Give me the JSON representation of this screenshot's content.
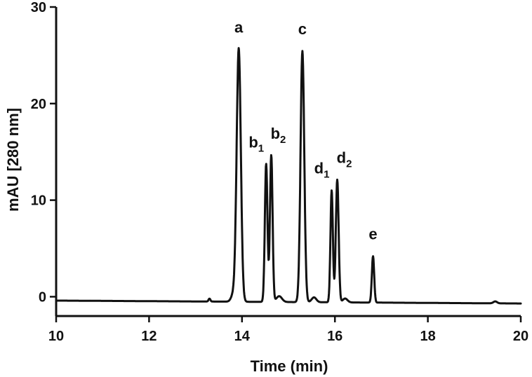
{
  "chart_data": {
    "type": "line",
    "xlabel": "Time (min)",
    "ylabel": "mAU [280 nm]",
    "xlim": [
      10,
      20
    ],
    "ylim": [
      -2,
      30
    ],
    "x_ticks": [
      "10",
      "12",
      "14",
      "16",
      "18",
      "20"
    ],
    "y_ticks": [
      "0",
      "10",
      "20",
      "30"
    ],
    "baseline": {
      "start_value": -0.4,
      "end_value": -0.7
    },
    "peaks": [
      {
        "label": "a",
        "sub": "",
        "time": 13.93,
        "height": 26.2,
        "width": 0.045
      },
      {
        "label": "b",
        "sub": "1",
        "time": 14.52,
        "height": 14.3,
        "width": 0.028
      },
      {
        "label": "b",
        "sub": "2",
        "time": 14.63,
        "height": 15.2,
        "width": 0.028
      },
      {
        "label": "c",
        "sub": "",
        "time": 15.3,
        "height": 26.0,
        "width": 0.04
      },
      {
        "label": "d",
        "sub": "1",
        "time": 15.93,
        "height": 11.6,
        "width": 0.026
      },
      {
        "label": "d",
        "sub": "2",
        "time": 16.05,
        "height": 12.7,
        "width": 0.03
      },
      {
        "label": "e",
        "sub": "",
        "time": 16.82,
        "height": 4.8,
        "width": 0.025
      }
    ],
    "minor_features": [
      {
        "time": 13.3,
        "height": 0.3,
        "width": 0.02
      },
      {
        "time": 13.82,
        "height": 0.8,
        "width": 0.05
      },
      {
        "time": 14.8,
        "height": 0.6,
        "width": 0.06
      },
      {
        "time": 15.55,
        "height": 0.5,
        "width": 0.05
      },
      {
        "time": 16.22,
        "height": 0.4,
        "width": 0.05
      },
      {
        "time": 19.45,
        "height": 0.2,
        "width": 0.04
      }
    ],
    "grid": false
  }
}
